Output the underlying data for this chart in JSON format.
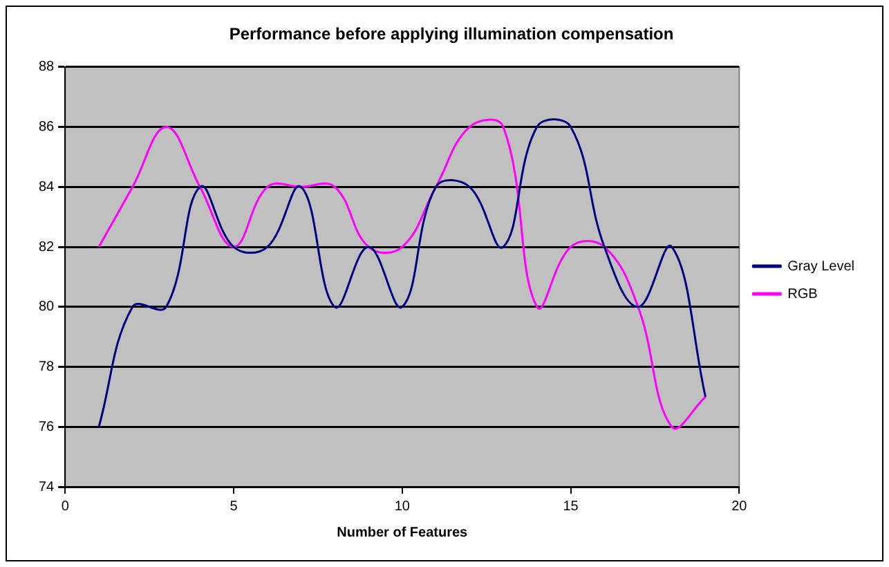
{
  "chart_data": {
    "type": "line",
    "title": "Performance before applying illumination compensation",
    "xlabel": "Number of Features",
    "x": [
      1,
      2,
      3,
      4,
      5,
      6,
      7,
      8,
      9,
      10,
      11,
      12,
      13,
      14,
      15,
      16,
      17,
      18,
      19
    ],
    "series": [
      {
        "name": "Gray Level",
        "color": "#000080",
        "values": [
          76,
          80,
          80,
          84,
          82,
          82,
          84,
          80,
          82,
          80,
          84,
          84,
          82,
          86,
          86,
          82,
          80,
          82,
          77
        ]
      },
      {
        "name": "RGB",
        "color": "#ff00ff",
        "values": [
          82,
          84,
          86,
          84,
          82,
          84,
          84,
          84,
          82,
          82,
          84,
          86,
          86,
          80,
          82,
          82,
          80,
          76,
          77
        ]
      }
    ],
    "xlim": [
      0,
      20
    ],
    "xticks": [
      0,
      5,
      10,
      15,
      20
    ],
    "ylim": [
      74,
      88
    ],
    "yticks": [
      74,
      76,
      78,
      80,
      82,
      84,
      86,
      88
    ],
    "grid": "y",
    "legend": "right",
    "marker": "none",
    "line_style": "solid"
  }
}
